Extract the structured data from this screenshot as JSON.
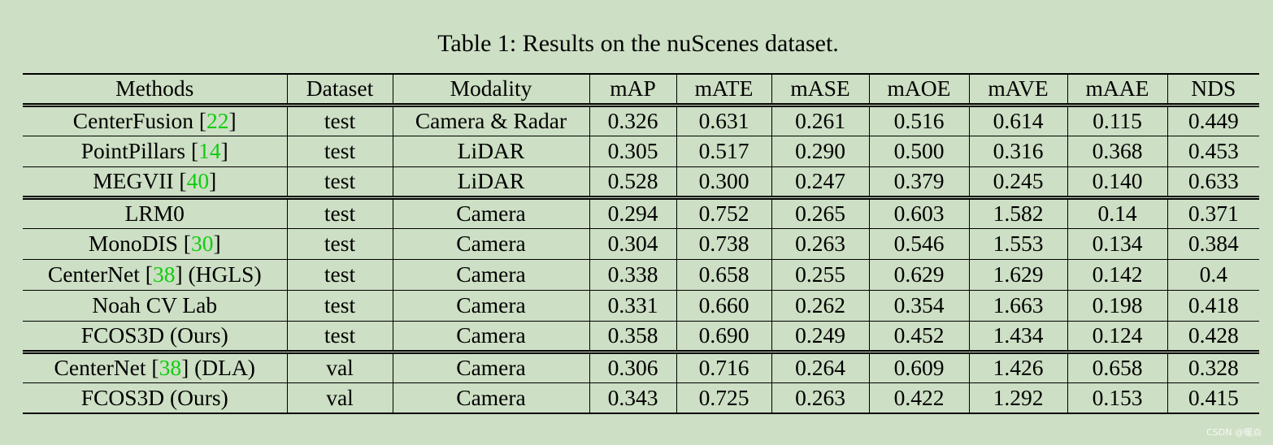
{
  "caption": "Table 1: Results on the nuScenes dataset.",
  "watermark": "CSDN @暖焱",
  "columns": [
    "Methods",
    "Dataset",
    "Modality",
    "mAP",
    "mATE",
    "mASE",
    "mAOE",
    "mAVE",
    "mAAE",
    "NDS"
  ],
  "colors": {
    "background": "#cddfc4",
    "citation": "#11cc11"
  },
  "groups": [
    {
      "rows": [
        {
          "method": "CenterFusion",
          "cite": "22",
          "suffix": "",
          "dataset": "test",
          "modality": "Camera & Radar",
          "values": [
            "0.326",
            "0.631",
            "0.261",
            "0.516",
            "0.614",
            "0.115",
            "0.449"
          ],
          "bold": []
        },
        {
          "method": "PointPillars",
          "cite": "14",
          "suffix": "",
          "dataset": "test",
          "modality": "LiDAR",
          "values": [
            "0.305",
            "0.517",
            "0.290",
            "0.500",
            "0.316",
            "0.368",
            "0.453"
          ],
          "bold": []
        },
        {
          "method": "MEGVII",
          "cite": "40",
          "suffix": "",
          "dataset": "test",
          "modality": "LiDAR",
          "values": [
            "0.528",
            "0.300",
            "0.247",
            "0.379",
            "0.245",
            "0.140",
            "0.633"
          ],
          "bold": [
            0,
            6
          ]
        }
      ]
    },
    {
      "rows": [
        {
          "method": "LRM0",
          "cite": "",
          "suffix": "",
          "dataset": "test",
          "modality": "Camera",
          "values": [
            "0.294",
            "0.752",
            "0.265",
            "0.603",
            "1.582",
            "0.14",
            "0.371"
          ],
          "bold": []
        },
        {
          "method": "MonoDIS",
          "cite": "30",
          "suffix": "",
          "dataset": "test",
          "modality": "Camera",
          "values": [
            "0.304",
            "0.738",
            "0.263",
            "0.546",
            "1.553",
            "0.134",
            "0.384"
          ],
          "bold": []
        },
        {
          "method": "CenterNet",
          "cite": "38",
          "suffix": "(HGLS)",
          "dataset": "test",
          "modality": "Camera",
          "values": [
            "0.338",
            "0.658",
            "0.255",
            "0.629",
            "1.629",
            "0.142",
            "0.4"
          ],
          "bold": []
        },
        {
          "method": "Noah CV Lab",
          "cite": "",
          "suffix": "",
          "dataset": "test",
          "modality": "Camera",
          "values": [
            "0.331",
            "0.660",
            "0.262",
            "0.354",
            "1.663",
            "0.198",
            "0.418"
          ],
          "bold": []
        },
        {
          "method": "FCOS3D (Ours)",
          "cite": "",
          "suffix": "",
          "dataset": "test",
          "modality": "Camera",
          "values": [
            "0.358",
            "0.690",
            "0.249",
            "0.452",
            "1.434",
            "0.124",
            "0.428"
          ],
          "bold": [
            0,
            6
          ]
        }
      ]
    },
    {
      "rows": [
        {
          "method": "CenterNet",
          "cite": "38",
          "suffix": "(DLA)",
          "dataset": "val",
          "modality": "Camera",
          "values": [
            "0.306",
            "0.716",
            "0.264",
            "0.609",
            "1.426",
            "0.658",
            "0.328"
          ],
          "bold": []
        },
        {
          "method": "FCOS3D (Ours)",
          "cite": "",
          "suffix": "",
          "dataset": "val",
          "modality": "Camera",
          "values": [
            "0.343",
            "0.725",
            "0.263",
            "0.422",
            "1.292",
            "0.153",
            "0.415"
          ],
          "bold": [
            0,
            6
          ]
        }
      ]
    }
  ]
}
